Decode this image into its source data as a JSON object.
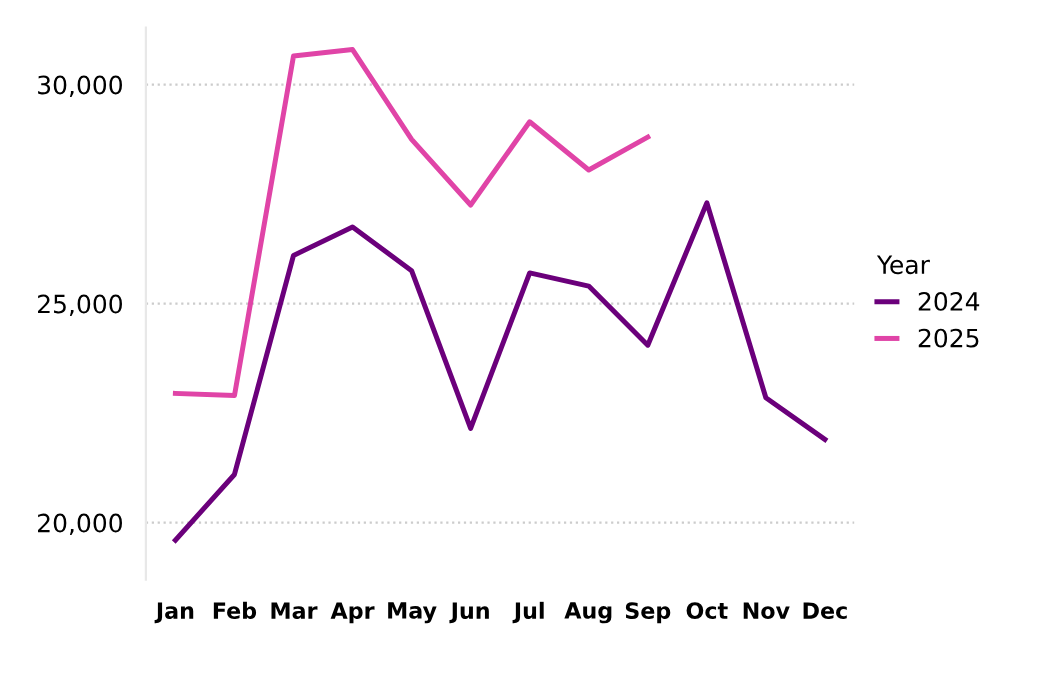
{
  "chart_data": {
    "type": "line",
    "categories": [
      "Jan",
      "Feb",
      "Mar",
      "Apr",
      "May",
      "Jun",
      "Jul",
      "Aug",
      "Sep",
      "Oct",
      "Nov",
      "Dec"
    ],
    "series": [
      {
        "name": "2024",
        "color": "#6b007b",
        "values": [
          19600,
          21100,
          26100,
          26750,
          25750,
          22150,
          25700,
          25400,
          24050,
          27300,
          22850,
          21900
        ]
      },
      {
        "name": "2025",
        "color": "#e044a7",
        "values": [
          22950,
          22900,
          30650,
          30800,
          28750,
          27250,
          29150,
          28050,
          28800,
          null,
          null,
          null
        ]
      }
    ],
    "legend_title": "Year",
    "legend": "right",
    "ylim": [
      18700,
      31300
    ],
    "yticks": [
      {
        "value": 20000,
        "label": "20,000"
      },
      {
        "value": 25000,
        "label": "25,000"
      },
      {
        "value": 30000,
        "label": "30,000"
      }
    ],
    "grid": "y",
    "marker": "none",
    "line_style": "solid"
  }
}
